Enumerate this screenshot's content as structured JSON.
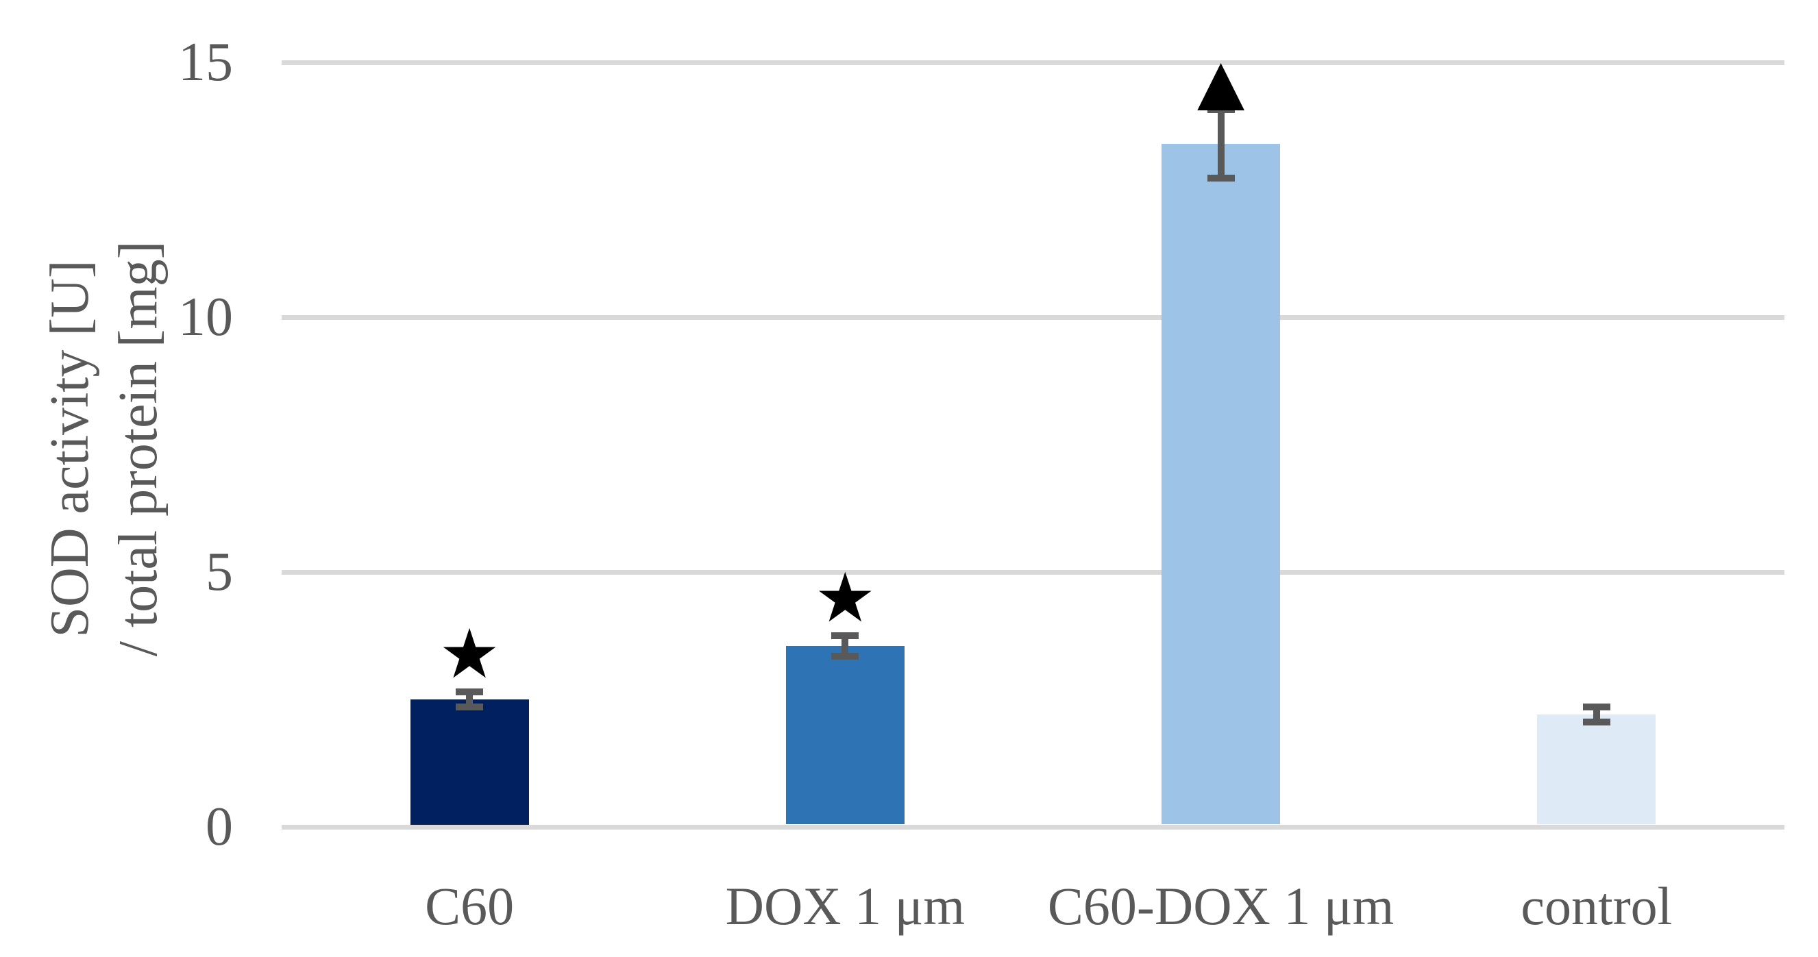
{
  "chart_data": {
    "type": "bar",
    "title": "",
    "ylabel_line1": "SOD activity [U]",
    "ylabel_line2": "/ total protein [mg]",
    "categories": [
      "C60",
      "DOX 1 μm",
      "C60-DOX 1 μm",
      "control"
    ],
    "values": [
      2.5,
      3.55,
      13.4,
      2.2
    ],
    "error_bars": [
      0.15,
      0.2,
      0.67,
      0.15
    ],
    "significance_markers": [
      "star",
      "star",
      "triangle",
      null
    ],
    "marker_glyphs": {
      "star": "★",
      "triangle": "▲"
    },
    "bar_colors": [
      "#002060",
      "#2E74B5",
      "#9DC3E6",
      "#DEEBF7"
    ],
    "yticks": [
      0,
      5,
      10,
      15
    ],
    "ylim": [
      0,
      15
    ],
    "grid": true,
    "legend_position": "none",
    "gridline_color": "#D9D9D9",
    "error_bar_color": "#595959",
    "text_color": "#595959",
    "marker_color": "#000000",
    "background_color": "#FFFFFF"
  }
}
